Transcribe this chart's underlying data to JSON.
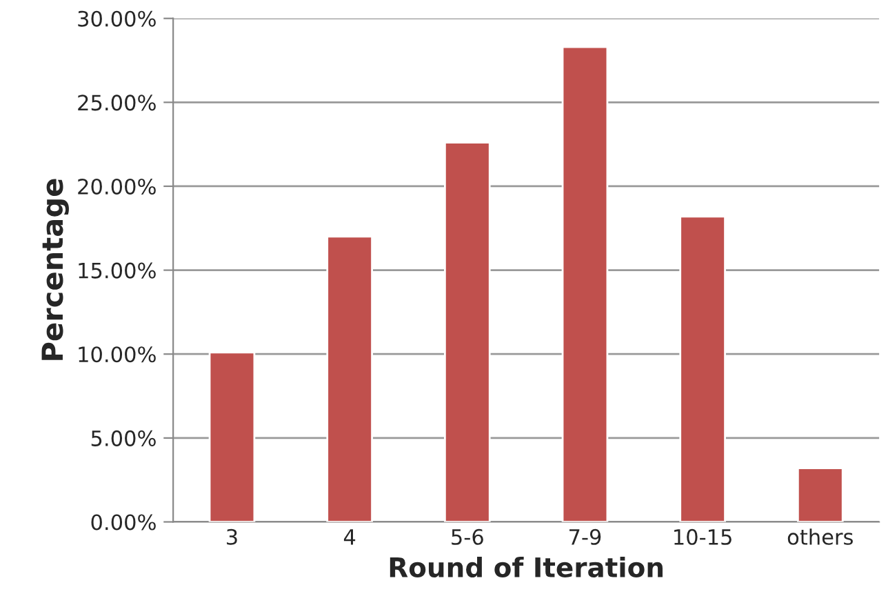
{
  "chart_data": {
    "type": "bar",
    "xlabel": "Round of Iteration",
    "ylabel": "Percentage",
    "categories": [
      "3",
      "4",
      "5-6",
      "7-9",
      "10-15",
      "others"
    ],
    "values": [
      10.1,
      17.0,
      22.6,
      28.3,
      18.2,
      3.2
    ],
    "color": "#c0504d",
    "ylim": [
      0,
      30
    ],
    "yticks": [
      {
        "value": 0,
        "label": "0.00%"
      },
      {
        "value": 5,
        "label": "5.00%"
      },
      {
        "value": 10,
        "label": "10.00%"
      },
      {
        "value": 15,
        "label": "15.00%"
      },
      {
        "value": 20,
        "label": "20.00%"
      },
      {
        "value": 25,
        "label": "25.00%"
      },
      {
        "value": 30,
        "label": "30.00%"
      }
    ],
    "grid": "y"
  }
}
